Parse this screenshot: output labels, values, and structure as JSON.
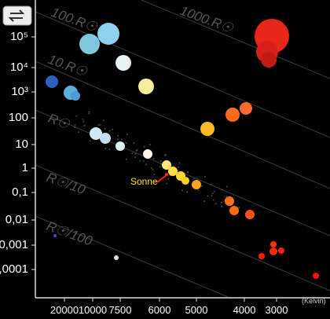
{
  "axes": {
    "y_labels": [
      "10⁵",
      "10⁴",
      "10³",
      "100",
      "10",
      "1",
      "0,1",
      "0,01",
      "0,001",
      "0,0001"
    ],
    "x_labels": [
      "20000",
      "10000",
      "7500",
      "6000",
      "5000",
      "4000",
      "3000"
    ],
    "x_unit": "(Kelvin)"
  },
  "radius_lines": [
    "100.R☉",
    "1000.R☉",
    "10.R☉",
    "R☉",
    "R☉/10",
    "R☉/100"
  ],
  "annotation": "Sonne"
}
